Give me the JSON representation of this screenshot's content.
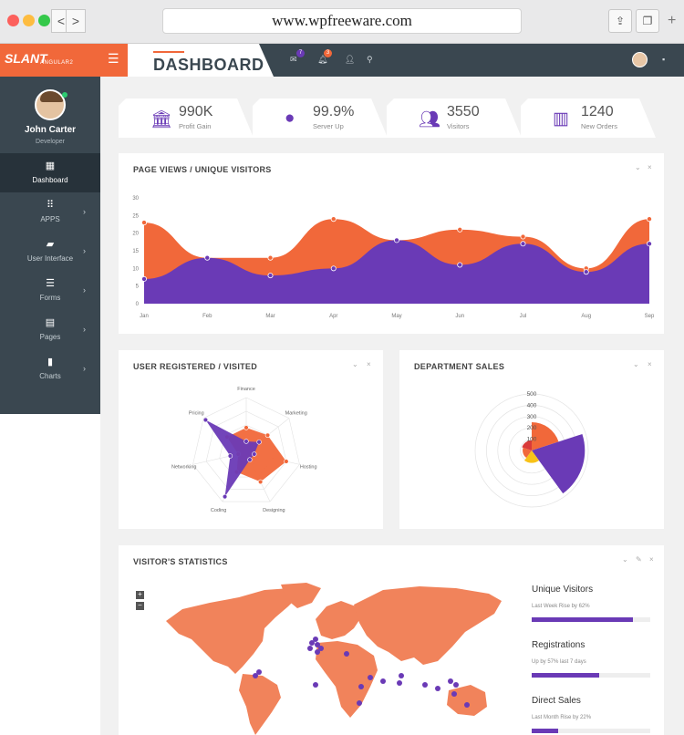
{
  "browser": {
    "url": "www.wpfreeware.com",
    "back": "<",
    "forward": ">"
  },
  "app": {
    "logo": "SLANT",
    "logo_sub": "ANGULAR2",
    "page_title": "DASHBOARD",
    "badges": {
      "messages": "7",
      "notifications": "3"
    },
    "accent": "#f1683a",
    "purple": "#6a3ab6",
    "dark": "#3a4750"
  },
  "user": {
    "name": "John Carter",
    "role": "Developer"
  },
  "nav": [
    {
      "label": "Dashboard",
      "icon": "dashboard-icon"
    },
    {
      "label": "APPS",
      "icon": "apps-icon"
    },
    {
      "label": "User Interface",
      "icon": "briefcase-icon"
    },
    {
      "label": "Forms",
      "icon": "tune-icon"
    },
    {
      "label": "Pages",
      "icon": "pages-icon"
    },
    {
      "label": "Charts",
      "icon": "bar-chart-icon"
    }
  ],
  "stats": [
    {
      "value": "990K",
      "label": "Profit Gain",
      "icon": "bank-icon"
    },
    {
      "value": "99.9%",
      "label": "Server Up",
      "icon": "globe-icon"
    },
    {
      "value": "3550",
      "label": "Visitors",
      "icon": "people-icon"
    },
    {
      "value": "1240",
      "label": "New Orders",
      "icon": "store-icon"
    }
  ],
  "cards": {
    "pageviews": "PAGE VIEWS / UNIQUE VISITORS",
    "registered": "USER REGISTERED / VISITED",
    "dept": "DEPARTMENT SALES",
    "visitor_stats": "VISITOR'S STATISTICS"
  },
  "map_zoom": {
    "in": "+",
    "out": "−"
  },
  "visitor_stats": [
    {
      "label": "Unique Visitors",
      "sub": "Last Week Rise by 62%",
      "progress": 0.85
    },
    {
      "label": "Registrations",
      "sub": "Up by 57% last 7 days",
      "progress": 0.57
    },
    {
      "label": "Direct Sales",
      "sub": "Last Month Rise by 22%",
      "progress": 0.22
    }
  ],
  "chart_data": [
    {
      "type": "area",
      "categories": [
        "Jan",
        "Feb",
        "Mar",
        "Apr",
        "May",
        "Jun",
        "Jul",
        "Aug",
        "Sep"
      ],
      "yticks": [
        "0",
        "5",
        "10",
        "15",
        "20",
        "25",
        "30"
      ],
      "ylim": [
        0,
        30
      ],
      "series": [
        {
          "color": "#f1683a",
          "values": [
            23,
            13,
            13,
            24,
            18,
            21,
            19,
            10,
            24
          ]
        },
        {
          "color": "#6a3ab6",
          "values": [
            7,
            13,
            8,
            10,
            18,
            11,
            17,
            9,
            17
          ]
        }
      ]
    },
    {
      "type": "radar",
      "axes": [
        "Finance",
        "Marketing",
        "Hosting",
        "Designing",
        "Coding",
        "Networking",
        "Pricing"
      ],
      "rmax": 100,
      "series": [
        {
          "color": "#f1683a",
          "values": [
            45,
            50,
            75,
            60,
            40,
            15,
            45
          ]
        },
        {
          "color": "#6a3ab6",
          "values": [
            20,
            30,
            15,
            15,
            90,
            30,
            95
          ]
        }
      ]
    },
    {
      "type": "polar",
      "rticks": [
        "100",
        "200",
        "300",
        "400",
        "500"
      ],
      "rmax": 500,
      "segments": [
        {
          "value": 250,
          "color": "#f1683a"
        },
        {
          "value": 470,
          "color": "#6a3ab6"
        },
        {
          "value": 110,
          "color": "#f8c218"
        },
        {
          "value": 80,
          "color": "#f1683a"
        },
        {
          "value": 90,
          "color": "#d93a3a"
        }
      ]
    }
  ]
}
